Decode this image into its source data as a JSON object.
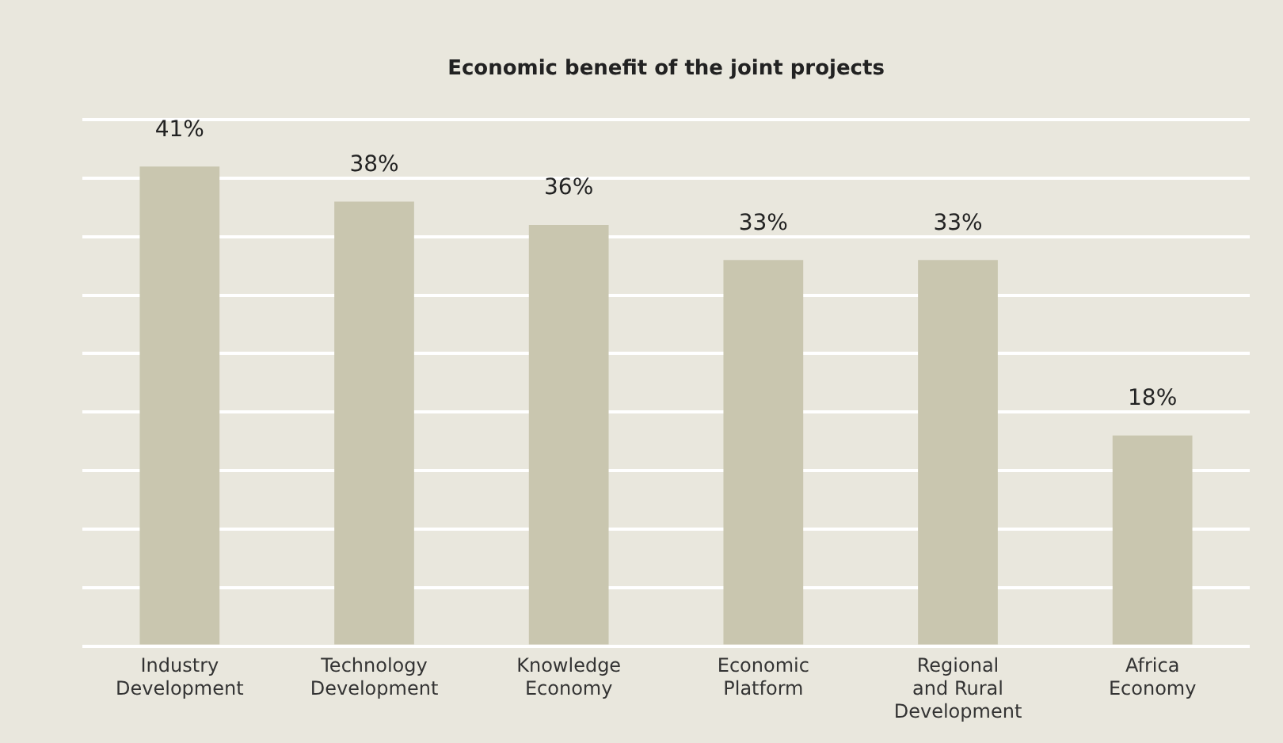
{
  "chart_data": {
    "type": "bar",
    "title": "Economic benefit of the joint projects",
    "categories": [
      "Industry\nDevelopment",
      "Technology\nDevelopment",
      "Knowledge\nEconomy",
      "Economic\nPlatform",
      "Regional\nand Rural\nDevelopment",
      "Africa\nEconomy"
    ],
    "values": [
      41,
      38,
      36,
      33,
      33,
      18
    ],
    "value_labels": [
      "41%",
      "38%",
      "36%",
      "33%",
      "33%",
      "18%"
    ],
    "color": "#c9c6af",
    "ylim": [
      0,
      45
    ],
    "yticks": [
      {
        "value": 0,
        "label": null
      },
      {
        "value": 5,
        "label": null
      },
      {
        "value": 10,
        "label": null
      },
      {
        "value": 15,
        "label": null
      },
      {
        "value": 20,
        "label": null
      },
      {
        "value": 25,
        "label": null
      },
      {
        "value": 30,
        "label": null
      },
      {
        "value": 35,
        "label": null
      },
      {
        "value": 40,
        "label": null
      },
      {
        "value": 45,
        "label": null
      }
    ],
    "grid": "y",
    "tick_labels": "x"
  }
}
